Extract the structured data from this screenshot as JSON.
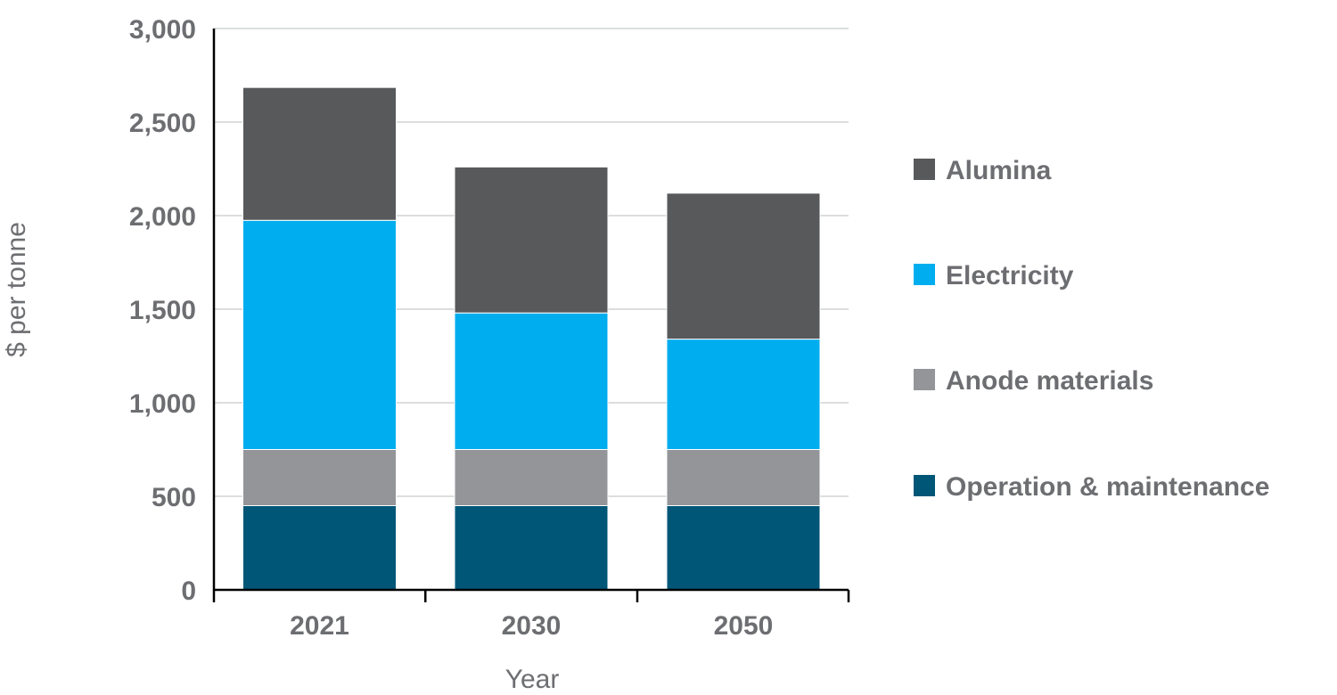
{
  "chart_data": {
    "type": "bar",
    "stacked": true,
    "title": "",
    "xlabel": "Year",
    "ylabel": "$ per tonne",
    "categories": [
      "2021",
      "2030",
      "2050"
    ],
    "ylim": [
      0,
      3000
    ],
    "yticks": [
      0,
      500,
      1000,
      1500,
      2000,
      2500,
      3000
    ],
    "ytick_labels": [
      "0",
      "500",
      "1,000",
      "1,500",
      "2,000",
      "2,500",
      "3,000"
    ],
    "grid": true,
    "legend_position": "right",
    "series": [
      {
        "name": "Operation & maintenance",
        "color": "#005677",
        "values": [
          450,
          450,
          450
        ]
      },
      {
        "name": "Anode materials",
        "color": "#939598",
        "values": [
          300,
          300,
          300
        ]
      },
      {
        "name": "Electricity",
        "color": "#00adef",
        "values": [
          1225,
          730,
          590
        ]
      },
      {
        "name": "Alumina",
        "color": "#58595b",
        "values": [
          710,
          780,
          780
        ]
      }
    ]
  }
}
